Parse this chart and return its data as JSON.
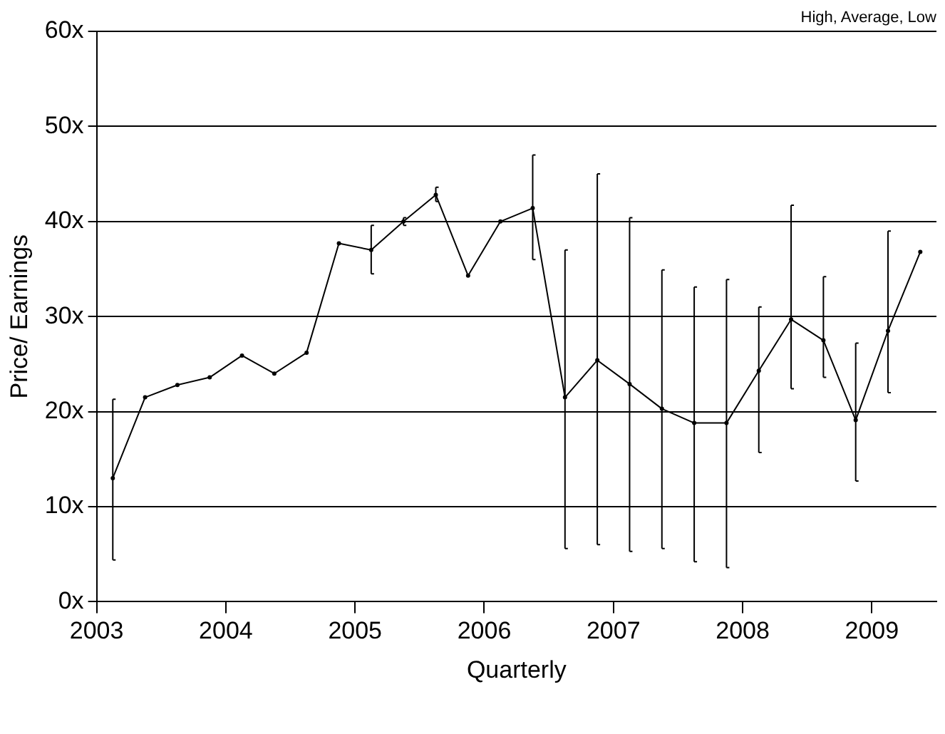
{
  "chart_data": {
    "type": "line",
    "xlabel": "Quarterly",
    "ylabel": "Price/ Earnings",
    "annotations": [
      "High, Average, Low"
    ],
    "x": [
      2003.125,
      2003.375,
      2003.625,
      2003.875,
      2004.125,
      2004.375,
      2004.625,
      2004.875,
      2005.125,
      2005.375,
      2005.625,
      2005.875,
      2006.125,
      2006.375,
      2006.625,
      2006.875,
      2007.125,
      2007.375,
      2007.625,
      2007.875,
      2008.125,
      2008.375,
      2008.625,
      2008.875,
      2009.125,
      2009.375
    ],
    "series": [
      {
        "color": "#000000",
        "values": [
          13,
          21.5,
          22.8,
          23.6,
          25.9,
          24,
          26.2,
          37.7,
          37,
          40,
          42.8,
          34.3,
          40,
          41.4,
          21.5,
          25.4,
          22.9,
          20.3,
          18.8,
          18.8,
          24.3,
          29.7,
          27.5,
          19.1,
          28.5,
          36.8
        ],
        "errors": [
          [
            4.4,
            21.3
          ],
          null,
          null,
          null,
          null,
          null,
          null,
          null,
          [
            34.5,
            39.6
          ],
          [
            39.6,
            40.4
          ],
          [
            42.1,
            43.6
          ],
          null,
          null,
          [
            36,
            47
          ],
          [
            5.6,
            37
          ],
          [
            6,
            45
          ],
          [
            5.3,
            40.4
          ],
          [
            5.6,
            34.9
          ],
          [
            4.2,
            33.1
          ],
          [
            3.6,
            33.9
          ],
          [
            15.7,
            31
          ],
          [
            22.4,
            41.7
          ],
          [
            23.6,
            34.2
          ],
          [
            12.7,
            27.2
          ],
          [
            22,
            39
          ],
          null
        ]
      }
    ],
    "xlim": [
      2003,
      2009.5
    ],
    "xticks": [
      2003,
      2004,
      2005,
      2006,
      2007,
      2008,
      2009
    ],
    "ylim": [
      0,
      60
    ],
    "yticks": [
      {
        "value": 0,
        "label": "0x"
      },
      {
        "value": 10,
        "label": "10x"
      },
      {
        "value": 20,
        "label": "20x"
      },
      {
        "value": 30,
        "label": "30x"
      },
      {
        "value": 40,
        "label": "40x"
      },
      {
        "value": 50,
        "label": "50x"
      },
      {
        "value": 60,
        "label": "60x"
      }
    ],
    "grid": "y",
    "legend": false,
    "marker": "circle",
    "line_style": "solid"
  }
}
